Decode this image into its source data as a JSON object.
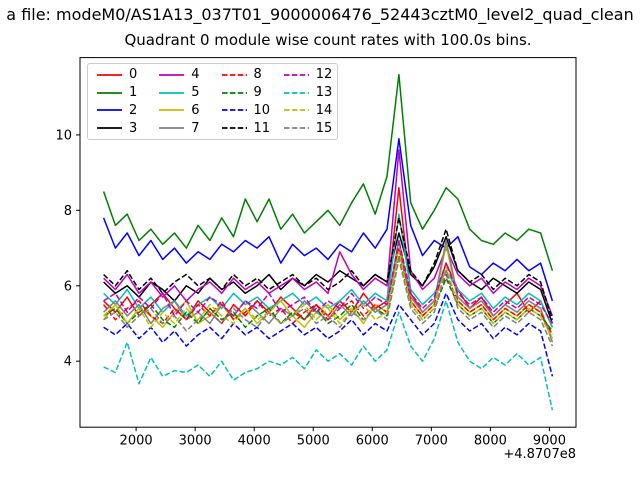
{
  "figure": {
    "suptitle": "a file: modeM0/AS1A13_037T01_9000006476_52443cztM0_level2_quad_clean",
    "axes_title": "Quadrant 0 module wise count rates with 100.0s bins.",
    "x_offset_label": "+4.8707e8"
  },
  "chart_data": {
    "type": "line",
    "title": "Quadrant 0 module wise count rates with 100.0s bins.",
    "xlabel": "",
    "ylabel": "",
    "x_axis_offset": "+4.8707e8",
    "xlim": [
      1050,
      9450
    ],
    "ylim": [
      2.25,
      12.05
    ],
    "x_ticks": [
      2000,
      3000,
      4000,
      5000,
      6000,
      7000,
      8000,
      9000
    ],
    "y_ticks": [
      4,
      6,
      8,
      10
    ],
    "grid": false,
    "legend_position": "upper left",
    "legend_columns": 4,
    "x": [
      1450,
      1650,
      1850,
      2050,
      2250,
      2450,
      2650,
      2850,
      3050,
      3250,
      3450,
      3650,
      3850,
      4050,
      4250,
      4450,
      4650,
      4850,
      5050,
      5250,
      5450,
      5650,
      5850,
      6050,
      6250,
      6450,
      6650,
      6850,
      7050,
      7250,
      7450,
      7650,
      7850,
      8050,
      8250,
      8450,
      8650,
      8850,
      9050
    ],
    "series": [
      {
        "name": "0",
        "color": "#ff0000",
        "dash": false,
        "values": [
          5.6,
          5.3,
          5.7,
          5.2,
          5.5,
          5.8,
          5.4,
          5.1,
          5.6,
          5.3,
          5.0,
          5.5,
          5.2,
          5.6,
          5.3,
          5.7,
          5.4,
          5.1,
          5.5,
          5.2,
          5.6,
          5.3,
          5.8,
          5.4,
          5.6,
          8.6,
          5.8,
          5.3,
          5.6,
          6.6,
          5.9,
          5.4,
          5.7,
          5.2,
          5.5,
          5.8,
          5.3,
          5.6,
          4.9
        ]
      },
      {
        "name": "1",
        "color": "#008000",
        "dash": false,
        "values": [
          8.5,
          7.6,
          7.9,
          7.2,
          7.5,
          7.1,
          7.4,
          7.0,
          7.6,
          7.2,
          7.8,
          7.3,
          8.3,
          7.7,
          8.3,
          7.5,
          7.9,
          7.4,
          7.7,
          8.0,
          7.6,
          8.2,
          8.7,
          7.9,
          8.9,
          11.6,
          8.2,
          7.5,
          8.0,
          8.6,
          8.3,
          7.5,
          7.2,
          7.1,
          7.4,
          7.2,
          7.5,
          7.4,
          6.4
        ]
      },
      {
        "name": "2",
        "color": "#0000ff",
        "dash": false,
        "values": [
          7.8,
          7.0,
          7.4,
          6.8,
          7.2,
          6.7,
          7.0,
          6.6,
          6.9,
          6.7,
          7.1,
          6.9,
          7.2,
          7.0,
          7.3,
          6.6,
          7.1,
          6.8,
          7.0,
          6.7,
          7.1,
          6.9,
          7.4,
          7.0,
          7.5,
          9.9,
          7.6,
          6.8,
          7.2,
          7.0,
          7.3,
          6.5,
          6.3,
          6.6,
          6.4,
          6.7,
          6.4,
          6.6,
          5.6
        ]
      },
      {
        "name": "3",
        "color": "#000000",
        "dash": false,
        "values": [
          6.1,
          5.8,
          6.0,
          5.7,
          6.1,
          5.9,
          5.6,
          6.0,
          5.8,
          6.2,
          5.9,
          6.1,
          5.8,
          6.0,
          6.3,
          5.9,
          6.2,
          6.0,
          6.3,
          6.1,
          6.4,
          6.2,
          6.0,
          6.3,
          6.1,
          7.4,
          6.3,
          6.0,
          6.5,
          7.3,
          6.4,
          6.1,
          5.9,
          6.2,
          6.0,
          5.8,
          6.1,
          5.9,
          5.0
        ]
      },
      {
        "name": "4",
        "color": "#bf00bf",
        "dash": false,
        "values": [
          6.2,
          5.9,
          6.3,
          5.8,
          6.1,
          5.7,
          6.0,
          5.6,
          5.9,
          6.1,
          5.8,
          6.2,
          5.9,
          6.1,
          5.8,
          6.0,
          6.2,
          5.9,
          6.1,
          5.8,
          6.9,
          6.3,
          5.9,
          6.2,
          6.0,
          9.6,
          6.4,
          5.9,
          6.2,
          7.0,
          6.3,
          6.0,
          6.2,
          5.8,
          6.1,
          5.9,
          6.2,
          6.0,
          5.2
        ]
      },
      {
        "name": "5",
        "color": "#00bfbf",
        "dash": false,
        "values": [
          5.8,
          5.5,
          5.9,
          5.4,
          5.7,
          5.3,
          5.6,
          5.2,
          5.5,
          5.7,
          5.4,
          5.8,
          5.5,
          5.7,
          5.4,
          5.6,
          5.8,
          5.5,
          5.7,
          5.4,
          5.6,
          5.9,
          5.5,
          5.8,
          5.6,
          7.9,
          5.9,
          5.5,
          5.8,
          6.4,
          5.9,
          5.6,
          5.8,
          5.4,
          5.7,
          5.5,
          5.8,
          5.6,
          4.9
        ]
      },
      {
        "name": "6",
        "color": "#bfbf00",
        "dash": false,
        "values": [
          5.1,
          5.5,
          5.0,
          5.4,
          5.2,
          4.9,
          5.3,
          5.6,
          5.0,
          5.2,
          5.5,
          5.1,
          5.4,
          5.0,
          5.3,
          5.6,
          5.2,
          4.9,
          5.3,
          5.5,
          5.1,
          5.4,
          5.0,
          5.5,
          5.3,
          7.0,
          5.6,
          5.2,
          5.5,
          7.1,
          5.6,
          5.3,
          5.5,
          5.1,
          5.4,
          5.2,
          5.5,
          5.3,
          4.6
        ]
      },
      {
        "name": "7",
        "color": "#808080",
        "dash": false,
        "values": [
          5.3,
          5.6,
          5.2,
          5.5,
          5.0,
          5.4,
          5.6,
          5.1,
          5.3,
          5.0,
          5.5,
          5.2,
          5.6,
          5.3,
          5.0,
          5.4,
          5.2,
          5.6,
          5.3,
          5.1,
          5.5,
          5.2,
          5.6,
          5.3,
          5.5,
          7.2,
          5.7,
          5.3,
          5.6,
          7.2,
          5.7,
          5.4,
          5.6,
          5.2,
          5.5,
          5.3,
          5.6,
          5.4,
          4.5
        ]
      },
      {
        "name": "8",
        "color": "#ff0000",
        "dash": true,
        "values": [
          5.5,
          5.1,
          5.4,
          5.6,
          5.2,
          5.0,
          5.4,
          5.1,
          5.5,
          5.2,
          5.6,
          5.1,
          5.3,
          5.6,
          5.2,
          5.4,
          5.0,
          5.3,
          5.5,
          5.1,
          5.4,
          5.6,
          5.2,
          5.5,
          5.3,
          7.0,
          5.6,
          5.2,
          5.5,
          6.3,
          5.6,
          5.3,
          5.5,
          5.1,
          5.4,
          5.2,
          5.5,
          5.3,
          4.7
        ]
      },
      {
        "name": "9",
        "color": "#008000",
        "dash": true,
        "values": [
          5.2,
          5.4,
          5.0,
          5.3,
          5.5,
          5.1,
          4.9,
          5.3,
          5.0,
          5.4,
          5.1,
          5.3,
          4.9,
          5.2,
          5.4,
          5.0,
          5.3,
          5.1,
          5.4,
          5.0,
          5.2,
          5.5,
          5.1,
          5.4,
          5.2,
          6.8,
          5.5,
          5.1,
          5.4,
          6.2,
          5.5,
          5.2,
          5.4,
          5.0,
          5.3,
          5.1,
          5.4,
          5.2,
          4.8
        ]
      },
      {
        "name": "10",
        "color": "#0000ff",
        "dash": true,
        "values": [
          4.9,
          4.7,
          5.0,
          4.6,
          4.9,
          4.5,
          4.8,
          4.4,
          4.7,
          4.9,
          4.6,
          5.0,
          4.7,
          4.9,
          4.6,
          4.8,
          5.0,
          4.7,
          4.9,
          4.6,
          4.8,
          5.1,
          4.7,
          5.0,
          4.8,
          5.5,
          5.1,
          4.7,
          5.0,
          5.8,
          5.1,
          4.8,
          5.0,
          4.6,
          4.9,
          4.7,
          5.0,
          4.8,
          3.6
        ]
      },
      {
        "name": "11",
        "color": "#000000",
        "dash": true,
        "values": [
          6.3,
          6.0,
          6.4,
          5.9,
          6.2,
          5.8,
          6.1,
          6.3,
          6.0,
          6.2,
          5.9,
          6.3,
          6.0,
          6.2,
          5.9,
          6.1,
          6.3,
          6.0,
          6.2,
          5.9,
          6.1,
          6.4,
          6.0,
          6.3,
          6.1,
          7.8,
          6.4,
          6.0,
          6.6,
          7.5,
          6.4,
          6.1,
          6.3,
          5.9,
          6.2,
          6.0,
          6.3,
          6.1,
          5.1
        ]
      },
      {
        "name": "12",
        "color": "#bf00bf",
        "dash": true,
        "values": [
          5.6,
          5.8,
          5.3,
          5.7,
          5.4,
          5.8,
          5.2,
          5.6,
          5.3,
          5.7,
          5.5,
          5.2,
          5.6,
          5.4,
          5.8,
          5.3,
          5.5,
          5.7,
          5.3,
          5.6,
          5.4,
          5.8,
          5.4,
          5.7,
          5.5,
          7.2,
          5.8,
          5.4,
          5.7,
          6.6,
          5.8,
          5.5,
          5.7,
          5.3,
          5.6,
          5.4,
          5.7,
          5.5,
          5.0
        ]
      },
      {
        "name": "13",
        "color": "#00bfbf",
        "dash": true,
        "values": [
          3.85,
          3.7,
          4.5,
          3.4,
          4.1,
          3.6,
          3.75,
          3.7,
          3.9,
          3.6,
          4.0,
          3.5,
          3.7,
          3.8,
          4.0,
          3.9,
          4.1,
          3.8,
          4.3,
          4.0,
          4.2,
          3.9,
          4.4,
          4.0,
          4.3,
          5.3,
          4.4,
          4.0,
          4.6,
          5.6,
          4.5,
          4.0,
          3.8,
          4.1,
          3.9,
          4.2,
          3.9,
          4.1,
          2.7
        ]
      },
      {
        "name": "14",
        "color": "#bfbf00",
        "dash": true,
        "values": [
          5.2,
          5.5,
          5.0,
          5.4,
          4.9,
          5.3,
          5.0,
          5.4,
          5.1,
          5.5,
          5.2,
          5.0,
          5.4,
          5.1,
          5.3,
          5.0,
          5.2,
          5.5,
          5.1,
          5.4,
          5.0,
          5.3,
          5.5,
          5.1,
          5.3,
          6.9,
          5.5,
          5.1,
          5.4,
          6.5,
          5.5,
          5.2,
          5.4,
          5.0,
          5.3,
          5.1,
          5.4,
          5.2,
          4.6
        ]
      },
      {
        "name": "15",
        "color": "#808080",
        "dash": true,
        "values": [
          5.1,
          5.3,
          4.9,
          5.2,
          5.4,
          5.0,
          5.2,
          4.8,
          5.1,
          5.3,
          5.0,
          5.4,
          5.1,
          4.9,
          5.3,
          5.0,
          5.2,
          5.4,
          5.0,
          5.2,
          4.9,
          5.3,
          5.1,
          5.4,
          5.1,
          6.7,
          5.4,
          5.0,
          5.3,
          6.4,
          5.4,
          5.1,
          5.3,
          4.9,
          5.2,
          5.0,
          5.3,
          5.1,
          4.4
        ]
      }
    ]
  }
}
